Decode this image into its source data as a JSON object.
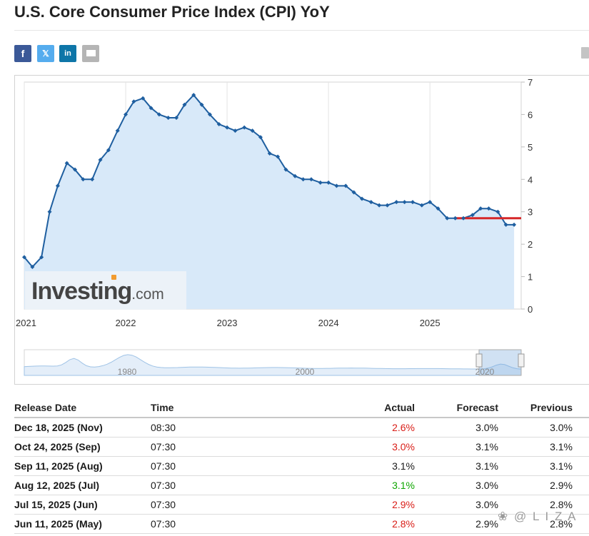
{
  "page": {
    "title": "U.S. Core Consumer Price Index (CPI) YoY",
    "watermark": "❀ @ L I Z A"
  },
  "share": [
    {
      "id": "facebook",
      "icon": "facebook-icon",
      "glyph": "f",
      "color": "#3b5998"
    },
    {
      "id": "twitter",
      "icon": "x-twitter-icon",
      "glyph": "𝕏",
      "color": "#55acee"
    },
    {
      "id": "linkedin",
      "icon": "linkedin-icon",
      "glyph": "in",
      "color": "#0e76a8"
    },
    {
      "id": "email",
      "icon": "envelope-icon",
      "glyph": "",
      "color": "#b5b5b5"
    }
  ],
  "logo": {
    "main": "Investing",
    "sub": ".com"
  },
  "chart_data": {
    "type": "area",
    "x_axis": {
      "ticks": [
        "2021",
        "2022",
        "2023",
        "2024",
        "2025"
      ],
      "range": [
        2021.0,
        2025.9
      ]
    },
    "y_axis": {
      "ticks": [
        0,
        1,
        2,
        3,
        4,
        5,
        6,
        7
      ],
      "range": [
        0,
        7
      ],
      "position": "right"
    },
    "grid": {
      "vertical": true,
      "horizontal": false
    },
    "series": [
      {
        "x": [
          2021.0,
          2021.08,
          2021.17,
          2021.25,
          2021.33,
          2021.42,
          2021.5,
          2021.58,
          2021.67,
          2021.75,
          2021.83,
          2021.92,
          2022.0,
          2022.08,
          2022.17,
          2022.25,
          2022.33,
          2022.42,
          2022.5,
          2022.58,
          2022.67,
          2022.75,
          2022.83,
          2022.92,
          2023.0,
          2023.08,
          2023.17,
          2023.25,
          2023.33,
          2023.42,
          2023.5,
          2023.58,
          2023.67,
          2023.75,
          2023.83,
          2023.92,
          2024.0,
          2024.08,
          2024.17,
          2024.25,
          2024.33,
          2024.42,
          2024.5,
          2024.58,
          2024.67,
          2024.75,
          2024.83,
          2024.92,
          2025.0,
          2025.08,
          2025.17,
          2025.25,
          2025.33,
          2025.42,
          2025.5,
          2025.58,
          2025.67,
          2025.75,
          2025.83
        ],
        "y": [
          1.6,
          1.3,
          1.6,
          3.0,
          3.8,
          4.5,
          4.3,
          4.0,
          4.0,
          4.6,
          4.9,
          5.5,
          6.0,
          6.4,
          6.5,
          6.2,
          6.0,
          5.9,
          5.9,
          6.3,
          6.6,
          6.3,
          6.0,
          5.7,
          5.6,
          5.5,
          5.6,
          5.5,
          5.3,
          4.8,
          4.7,
          4.3,
          4.1,
          4.0,
          4.0,
          3.9,
          3.9,
          3.8,
          3.8,
          3.6,
          3.4,
          3.3,
          3.2,
          3.2,
          3.3,
          3.3,
          3.3,
          3.2,
          3.3,
          3.1,
          2.8,
          2.8,
          2.8,
          2.9,
          3.1,
          3.1,
          3.0,
          2.6,
          2.6
        ],
        "color": "#1f5fa0",
        "fill": "#d8e9f9"
      }
    ],
    "forecast_line": {
      "x": [
        2025.25,
        2025.9
      ],
      "y": 2.8,
      "color": "#d62728"
    },
    "navigator": {
      "labels": [
        "1980",
        "2000",
        "2020"
      ]
    }
  },
  "table": {
    "headers": {
      "date": "Release Date",
      "time": "Time",
      "actual": "Actual",
      "forecast": "Forecast",
      "previous": "Previous"
    },
    "rows": [
      {
        "date": "Dec 18, 2025 (Nov)",
        "time": "08:30",
        "actual": "2.6%",
        "forecast": "3.0%",
        "previous": "3.0%",
        "actual_color": "#d91e18"
      },
      {
        "date": "Oct 24, 2025 (Sep)",
        "time": "07:30",
        "actual": "3.0%",
        "forecast": "3.1%",
        "previous": "3.1%",
        "actual_color": "#d91e18"
      },
      {
        "date": "Sep 11, 2025 (Aug)",
        "time": "07:30",
        "actual": "3.1%",
        "forecast": "3.1%",
        "previous": "3.1%",
        "actual_color": "#1a1a1a"
      },
      {
        "date": "Aug 12, 2025 (Jul)",
        "time": "07:30",
        "actual": "3.1%",
        "forecast": "3.0%",
        "previous": "2.9%",
        "actual_color": "#0ea600"
      },
      {
        "date": "Jul 15, 2025 (Jun)",
        "time": "07:30",
        "actual": "2.9%",
        "forecast": "3.0%",
        "previous": "2.8%",
        "actual_color": "#d91e18"
      },
      {
        "date": "Jun 11, 2025 (May)",
        "time": "07:30",
        "actual": "2.8%",
        "forecast": "2.9%",
        "previous": "2.8%",
        "actual_color": "#d91e18"
      }
    ]
  }
}
